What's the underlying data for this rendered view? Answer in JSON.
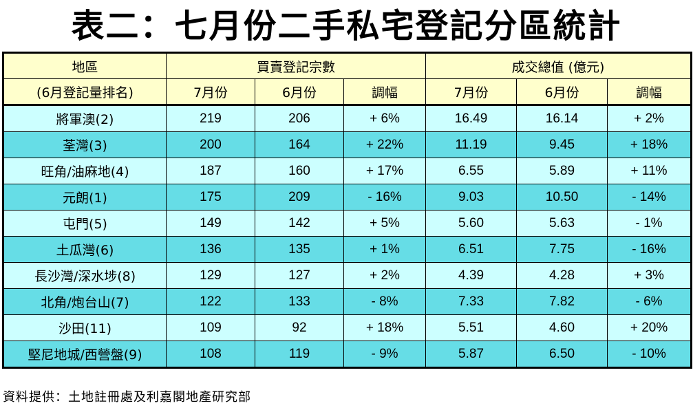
{
  "title": "表二：七月份二手私宅登記分區統計",
  "header": {
    "district": "地區",
    "district_sub": "(6月登記量排名)",
    "group_count": "買賣登記宗數",
    "group_value": "成交總值 (億元)",
    "col_jul": "7月份",
    "col_jun": "6月份",
    "col_change": "調幅"
  },
  "rows": [
    {
      "district": "將軍澳(2)",
      "cnt_jul": "219",
      "cnt_jun": "206",
      "cnt_chg": "+ 6%",
      "val_jul": "16.49",
      "val_jun": "16.14",
      "val_chg": "+ 2%"
    },
    {
      "district": "荃灣(3)",
      "cnt_jul": "200",
      "cnt_jun": "164",
      "cnt_chg": "+ 22%",
      "val_jul": "11.19",
      "val_jun": "9.45",
      "val_chg": "+ 18%"
    },
    {
      "district": "旺角/油麻地(4)",
      "cnt_jul": "187",
      "cnt_jun": "160",
      "cnt_chg": "+ 17%",
      "val_jul": "6.55",
      "val_jun": "5.89",
      "val_chg": "+ 11%"
    },
    {
      "district": "元朗(1)",
      "cnt_jul": "175",
      "cnt_jun": "209",
      "cnt_chg": "- 16%",
      "val_jul": "9.03",
      "val_jun": "10.50",
      "val_chg": "- 14%"
    },
    {
      "district": "屯門(5)",
      "cnt_jul": "149",
      "cnt_jun": "142",
      "cnt_chg": "+ 5%",
      "val_jul": "5.60",
      "val_jun": "5.63",
      "val_chg": "- 1%"
    },
    {
      "district": "土瓜灣(6)",
      "cnt_jul": "136",
      "cnt_jun": "135",
      "cnt_chg": "+ 1%",
      "val_jul": "6.51",
      "val_jun": "7.75",
      "val_chg": "- 16%"
    },
    {
      "district": "長沙灣/深水埗(8)",
      "cnt_jul": "129",
      "cnt_jun": "127",
      "cnt_chg": "+ 2%",
      "val_jul": "4.39",
      "val_jun": "4.28",
      "val_chg": "+ 3%"
    },
    {
      "district": "北角/炮台山(7)",
      "cnt_jul": "122",
      "cnt_jun": "133",
      "cnt_chg": "- 8%",
      "val_jul": "7.33",
      "val_jun": "7.82",
      "val_chg": "- 6%"
    },
    {
      "district": "沙田(11)",
      "cnt_jul": "109",
      "cnt_jun": "92",
      "cnt_chg": "+ 18%",
      "val_jul": "5.51",
      "val_jun": "4.60",
      "val_chg": "+ 20%"
    },
    {
      "district": "堅尼地城/西營盤(9)",
      "cnt_jul": "108",
      "cnt_jun": "119",
      "cnt_chg": "- 9%",
      "val_jul": "5.87",
      "val_jun": "6.50",
      "val_chg": "- 10%"
    }
  ],
  "source": "資料提供：土地註冊處及利嘉閣地產研究部",
  "colors": {
    "header_bg": "#ffffcc",
    "row_light": "#ccffff",
    "row_dark": "#66dde6"
  }
}
